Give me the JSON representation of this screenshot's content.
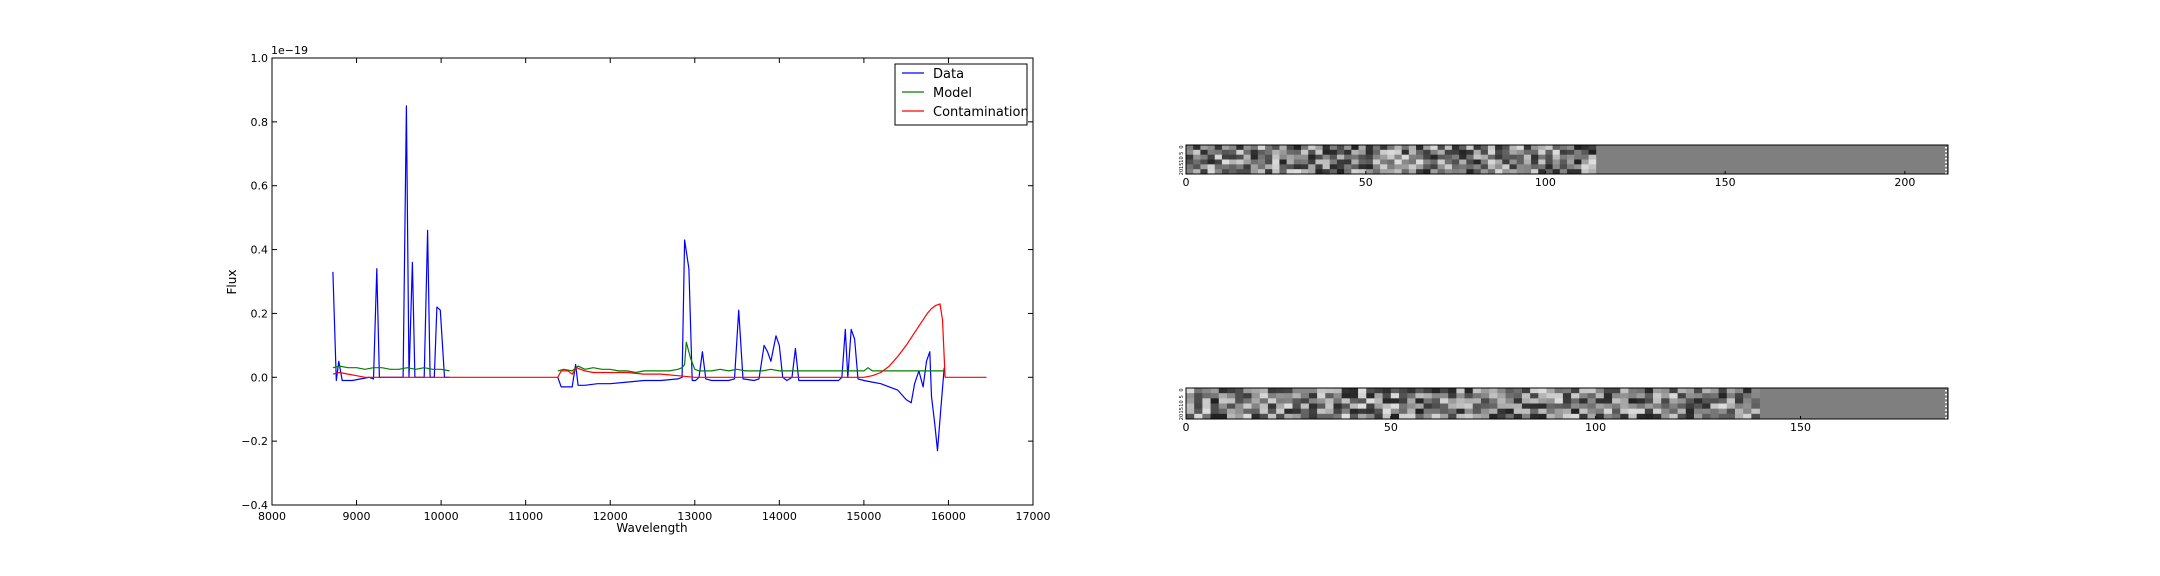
{
  "colors": {
    "data": "#0000ff",
    "model": "#008000",
    "contamination": "#ff0000",
    "background": "#ffffff",
    "image_fill": "#7f7f7f"
  },
  "chart_data": [
    {
      "type": "line",
      "title": "",
      "xlabel": "Wavelength",
      "ylabel": "Flux",
      "offset_text": "1e−19",
      "xlim": [
        8000,
        17000
      ],
      "ylim": [
        -0.4,
        1.0
      ],
      "xticks": [
        8000,
        9000,
        10000,
        11000,
        12000,
        13000,
        14000,
        15000,
        16000,
        17000
      ],
      "yticks": [
        -0.4,
        -0.2,
        0.0,
        0.2,
        0.4,
        0.6,
        0.8,
        1.0
      ],
      "xtick_labels": [
        "8000",
        "9000",
        "10000",
        "11000",
        "12000",
        "13000",
        "14000",
        "15000",
        "16000",
        "17000"
      ],
      "ytick_labels": [
        "−0.4",
        "−0.2",
        "0.0",
        "0.2",
        "0.4",
        "0.6",
        "0.8",
        "1.0"
      ],
      "grid": false,
      "legend": "top-right",
      "series": [
        {
          "name": "Data",
          "color": "#0000ff",
          "segments": [
            {
              "x": [
                8720,
                8760,
                8790,
                8830,
                8880,
                8950,
                9050,
                9150,
                9200,
                9240,
                9270,
                9310,
                9400,
                9500,
                9550,
                9590,
                9620,
                9660,
                9690,
                9730,
                9800,
                9840,
                9870,
                9920,
                9950,
                9990,
                10040,
                10070,
                10100
              ],
              "y": [
                0.33,
                -0.01,
                0.05,
                -0.01,
                -0.01,
                -0.01,
                -0.005,
                0.0,
                -0.005,
                0.34,
                0.0,
                0.0,
                0.0,
                0.0,
                0.0,
                0.85,
                0.0,
                0.36,
                0.0,
                0.0,
                0.0,
                0.46,
                0.0,
                0.0,
                0.22,
                0.21,
                0.0,
                0.0,
                0.0
              ]
            },
            {
              "x": [
                11380,
                11420,
                11500,
                11550,
                11590,
                11620,
                11700,
                11850,
                12000,
                12200,
                12400,
                12600,
                12800,
                12850,
                12880,
                12930,
                12970,
                13010,
                13050,
                13090,
                13130,
                13200,
                13300,
                13400,
                13470,
                13520,
                13570,
                13700,
                13760,
                13820,
                13860,
                13900,
                13960,
                14000,
                14040,
                14090,
                14150,
                14190,
                14230,
                14300,
                14400,
                14500,
                14600,
                14700,
                14740,
                14780,
                14810,
                14850,
                14890,
                14930,
                15000,
                15100,
                15200,
                15300,
                15400,
                15500,
                15560,
                15600,
                15650,
                15700,
                15740,
                15780,
                15800,
                15840,
                15870,
                15910,
                15950
              ],
              "y": [
                0.0,
                -0.03,
                -0.03,
                -0.03,
                0.04,
                -0.025,
                -0.025,
                -0.02,
                -0.02,
                -0.015,
                -0.01,
                -0.01,
                -0.005,
                0.0,
                0.43,
                0.34,
                -0.01,
                -0.01,
                0.0,
                0.08,
                -0.005,
                -0.01,
                -0.01,
                -0.01,
                -0.005,
                0.21,
                -0.005,
                -0.01,
                -0.005,
                0.1,
                0.08,
                0.05,
                0.13,
                0.1,
                0.0,
                -0.01,
                0.0,
                0.09,
                -0.01,
                -0.01,
                -0.01,
                -0.01,
                -0.01,
                -0.01,
                0.0,
                0.15,
                0.0,
                0.15,
                0.12,
                -0.005,
                -0.01,
                -0.015,
                -0.02,
                -0.03,
                -0.04,
                -0.07,
                -0.08,
                -0.02,
                0.02,
                -0.03,
                0.05,
                0.08,
                -0.06,
                -0.15,
                -0.23,
                -0.1,
                0.03
              ]
            }
          ]
        },
        {
          "name": "Model",
          "color": "#008000",
          "segments": [
            {
              "x": [
                8720,
                8800,
                8900,
                9000,
                9100,
                9200,
                9300,
                9400,
                9500,
                9600,
                9700,
                9800,
                9900,
                10000,
                10100
              ],
              "y": [
                0.03,
                0.035,
                0.03,
                0.03,
                0.025,
                0.03,
                0.03,
                0.025,
                0.025,
                0.03,
                0.025,
                0.03,
                0.025,
                0.025,
                0.02
              ]
            },
            {
              "x": [
                11380,
                11450,
                11550,
                11620,
                11700,
                11800,
                11900,
                12000,
                12100,
                12200,
                12300,
                12400,
                12500,
                12600,
                12700,
                12800,
                12850,
                12880,
                12900,
                12950,
                13000,
                13050,
                13100,
                13200,
                13300,
                13400,
                13500,
                13600,
                13700,
                13800,
                13900,
                14000,
                14100,
                14200,
                14300,
                14400,
                14500,
                14600,
                14700,
                14800,
                14900,
                15000,
                15050,
                15100,
                15200,
                15300,
                15400,
                15500,
                15600,
                15700,
                15800,
                15900,
                15950
              ],
              "y": [
                0.02,
                0.025,
                0.02,
                0.035,
                0.025,
                0.03,
                0.025,
                0.025,
                0.02,
                0.02,
                0.015,
                0.02,
                0.02,
                0.02,
                0.02,
                0.025,
                0.03,
                0.04,
                0.11,
                0.06,
                0.025,
                0.02,
                0.02,
                0.02,
                0.025,
                0.02,
                0.025,
                0.02,
                0.02,
                0.02,
                0.025,
                0.02,
                0.02,
                0.02,
                0.02,
                0.02,
                0.02,
                0.02,
                0.02,
                0.02,
                0.02,
                0.02,
                0.03,
                0.02,
                0.02,
                0.02,
                0.02,
                0.02,
                0.02,
                0.02,
                0.02,
                0.02,
                0.02
              ]
            }
          ]
        },
        {
          "name": "Contamination",
          "color": "#ff0000",
          "segments": [
            {
              "x": [
                8720,
                8800,
                8900,
                9000,
                9100,
                9200,
                9300,
                9500,
                10000,
                10500,
                11000,
                11380,
                11420,
                11500,
                11550,
                11600,
                11650,
                11700,
                11800,
                12000,
                12200,
                12400,
                12600,
                12800,
                13000,
                13500,
                14000,
                14500,
                15000,
                15100,
                15200,
                15300,
                15400,
                15500,
                15600,
                15700,
                15750,
                15800,
                15850,
                15900,
                15930,
                15960,
                16000,
                16100,
                16200,
                16300,
                16450
              ],
              "y": [
                0.01,
                0.015,
                0.01,
                0.005,
                0.0,
                0.0,
                0.0,
                0.0,
                0.0,
                0.0,
                0.0,
                0.0,
                0.02,
                0.02,
                0.01,
                0.03,
                0.025,
                0.02,
                0.015,
                0.015,
                0.015,
                0.01,
                0.01,
                0.005,
                0.0,
                0.0,
                0.0,
                0.0,
                0.0,
                0.005,
                0.015,
                0.035,
                0.065,
                0.1,
                0.14,
                0.18,
                0.2,
                0.215,
                0.225,
                0.23,
                0.18,
                0.0,
                0.0,
                0.0,
                0.0,
                0.0,
                0.0
              ]
            }
          ]
        }
      ]
    },
    {
      "type": "heatmap",
      "title": "",
      "xlim": [
        0,
        212
      ],
      "xticks": [
        0,
        50,
        100,
        150,
        200
      ],
      "xtick_labels": [
        "0",
        "50",
        "100",
        "150",
        "200"
      ],
      "ytick_labels": [
        "0",
        "5",
        "10",
        "15",
        "20"
      ],
      "filled_columns": 114,
      "seed": 7
    },
    {
      "type": "heatmap",
      "title": "",
      "xlim": [
        0,
        186
      ],
      "xticks": [
        0,
        50,
        100,
        150
      ],
      "xtick_labels": [
        "0",
        "50",
        "100",
        "150"
      ],
      "ytick_labels": [
        "0",
        "5",
        "10",
        "15",
        "20"
      ],
      "filled_columns": 139,
      "seed": 19
    }
  ]
}
